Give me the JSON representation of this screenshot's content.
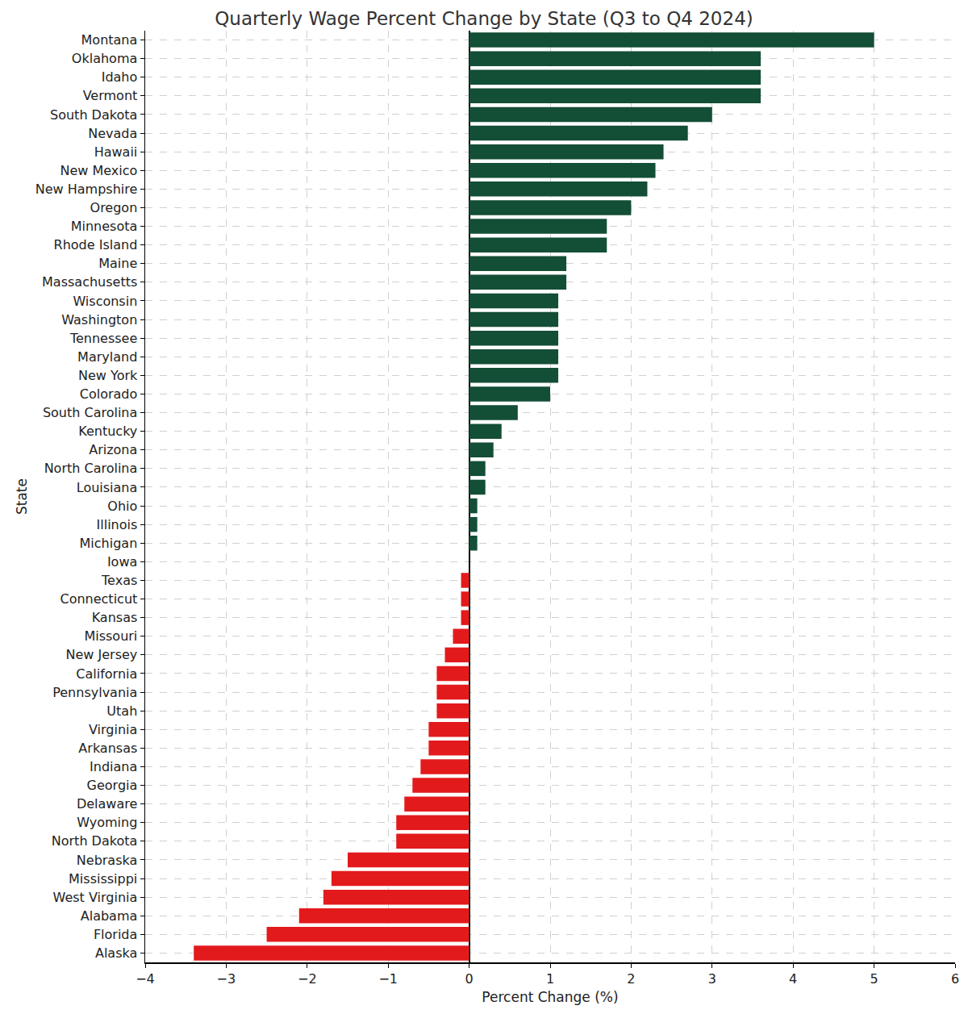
{
  "chart_data": {
    "type": "bar",
    "orientation": "horizontal",
    "title": "Quarterly Wage Percent Change by State (Q3 to Q4 2024)",
    "x_label": "Percent Change (%)",
    "y_label": "State",
    "categories": [
      "Montana",
      "Oklahoma",
      "Idaho",
      "Vermont",
      "South Dakota",
      "Nevada",
      "Hawaii",
      "New Mexico",
      "New Hampshire",
      "Oregon",
      "Minnesota",
      "Rhode Island",
      "Maine",
      "Massachusetts",
      "Wisconsin",
      "Washington",
      "Tennessee",
      "Maryland",
      "New York",
      "Colorado",
      "South Carolina",
      "Kentucky",
      "Arizona",
      "North Carolina",
      "Louisiana",
      "Ohio",
      "Illinois",
      "Michigan",
      "Iowa",
      "Texas",
      "Connecticut",
      "Kansas",
      "Missouri",
      "New Jersey",
      "California",
      "Pennsylvania",
      "Utah",
      "Virginia",
      "Arkansas",
      "Indiana",
      "Georgia",
      "Delaware",
      "Wyoming",
      "North Dakota",
      "Nebraska",
      "Mississippi",
      "West Virginia",
      "Alabama",
      "Florida",
      "Alaska"
    ],
    "values": [
      5.0,
      3.6,
      3.6,
      3.6,
      3.0,
      2.7,
      2.4,
      2.3,
      2.2,
      2.0,
      1.7,
      1.7,
      1.2,
      1.2,
      1.1,
      1.1,
      1.1,
      1.1,
      1.1,
      1.0,
      0.6,
      0.4,
      0.3,
      0.2,
      0.2,
      0.1,
      0.1,
      0.1,
      0.0,
      -0.1,
      -0.1,
      -0.1,
      -0.2,
      -0.3,
      -0.4,
      -0.4,
      -0.4,
      -0.5,
      -0.5,
      -0.6,
      -0.7,
      -0.8,
      -0.9,
      -0.9,
      -1.5,
      -1.7,
      -1.8,
      -2.1,
      -2.5,
      -3.4
    ],
    "colors": [
      "#134e36",
      "#134e36",
      "#134e36",
      "#134e36",
      "#134e36",
      "#134e36",
      "#134e36",
      "#134e36",
      "#134e36",
      "#134e36",
      "#134e36",
      "#134e36",
      "#134e36",
      "#134e36",
      "#134e36",
      "#134e36",
      "#134e36",
      "#134e36",
      "#134e36",
      "#134e36",
      "#134e36",
      "#134e36",
      "#134e36",
      "#134e36",
      "#134e36",
      "#134e36",
      "#134e36",
      "#134e36",
      "#134e36",
      "#e31a1c",
      "#e31a1c",
      "#e31a1c",
      "#e31a1c",
      "#e31a1c",
      "#e31a1c",
      "#e31a1c",
      "#e31a1c",
      "#e31a1c",
      "#e31a1c",
      "#e31a1c",
      "#e31a1c",
      "#e31a1c",
      "#e31a1c",
      "#e31a1c",
      "#e31a1c",
      "#e31a1c",
      "#e31a1c",
      "#e31a1c",
      "#e31a1c",
      "#e31a1c"
    ],
    "xlim": [
      -4,
      6
    ],
    "xticks": [
      {
        "value": -4,
        "label": "−4"
      },
      {
        "value": -3,
        "label": "−3"
      },
      {
        "value": -2,
        "label": "−2"
      },
      {
        "value": -1,
        "label": "−1"
      },
      0,
      1,
      2,
      3,
      4,
      5,
      6
    ],
    "grid": true
  }
}
